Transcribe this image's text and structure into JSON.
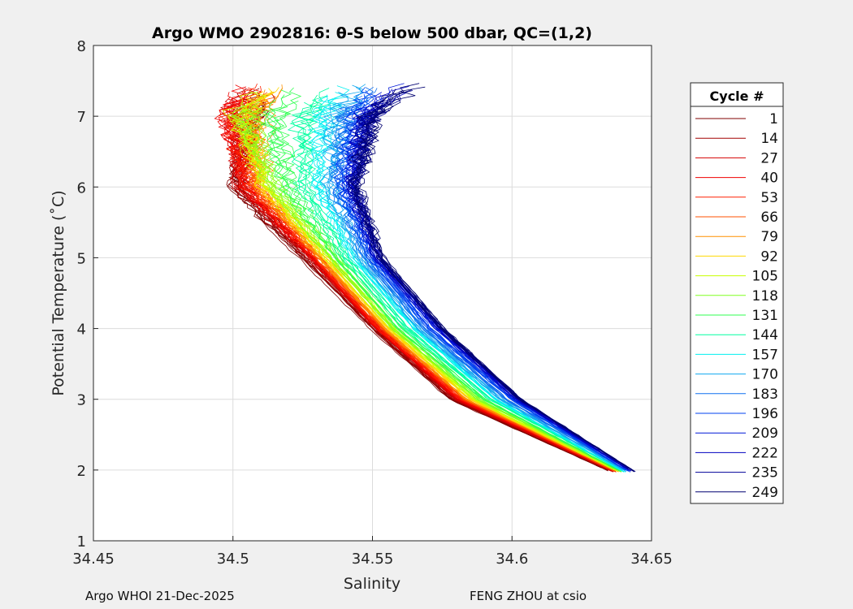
{
  "chart_data": {
    "type": "line",
    "title": "Argo WMO 2902816: θ-S below 500 dbar,  QC=(1,2)",
    "xlabel": "Salinity",
    "ylabel": "Potential Temperature (˚C)",
    "xlim": [
      34.45,
      34.65
    ],
    "ylim": [
      1,
      8
    ],
    "xticks": [
      "34.45",
      "34.5",
      "34.55",
      "34.6",
      "34.65"
    ],
    "xtick_values": [
      34.45,
      34.5,
      34.55,
      34.6,
      34.65
    ],
    "yticks": [
      "1",
      "2",
      "3",
      "4",
      "5",
      "6",
      "7",
      "8"
    ],
    "ytick_values": [
      1,
      2,
      3,
      4,
      5,
      6,
      7,
      8
    ],
    "grid": true,
    "legend_title": "Cycle #",
    "legend_position": "outside-right",
    "temperature_levels": [
      2,
      3,
      4,
      5,
      6,
      7,
      7.5
    ],
    "series": [
      {
        "name": "1",
        "color": "#800000",
        "salinity": [
          34.634,
          34.578,
          34.55,
          34.525,
          34.5,
          34.508,
          34.51
        ]
      },
      {
        "name": "14",
        "color": "#a30000",
        "salinity": [
          34.635,
          34.579,
          34.551,
          34.527,
          34.502,
          34.505,
          34.508
        ]
      },
      {
        "name": "27",
        "color": "#d40000",
        "salinity": [
          34.635,
          34.58,
          34.552,
          34.528,
          34.503,
          34.5,
          34.505
        ]
      },
      {
        "name": "40",
        "color": "#f00000",
        "salinity": [
          34.636,
          34.581,
          34.552,
          34.529,
          34.505,
          34.498,
          34.505
        ]
      },
      {
        "name": "53",
        "color": "#ff2000",
        "salinity": [
          34.636,
          34.582,
          34.553,
          34.53,
          34.506,
          34.5,
          34.51
        ]
      },
      {
        "name": "66",
        "color": "#ff5000",
        "salinity": [
          34.636,
          34.583,
          34.554,
          34.531,
          34.508,
          34.505,
          34.515
        ]
      },
      {
        "name": "79",
        "color": "#ff9000",
        "salinity": [
          34.637,
          34.584,
          34.555,
          34.532,
          34.51,
          34.51,
          34.52
        ]
      },
      {
        "name": "92",
        "color": "#ffd800",
        "salinity": [
          34.637,
          34.585,
          34.556,
          34.533,
          34.511,
          34.505,
          34.515
        ]
      },
      {
        "name": "105",
        "color": "#c8ff00",
        "salinity": [
          34.637,
          34.586,
          34.557,
          34.534,
          34.512,
          34.5,
          34.51
        ]
      },
      {
        "name": "118",
        "color": "#80ff20",
        "salinity": [
          34.638,
          34.588,
          34.558,
          34.536,
          34.515,
          34.505,
          34.515
        ]
      },
      {
        "name": "131",
        "color": "#30ff50",
        "salinity": [
          34.638,
          34.59,
          34.56,
          34.538,
          34.52,
          34.515,
          34.525
        ]
      },
      {
        "name": "144",
        "color": "#00ffa0",
        "salinity": [
          34.639,
          34.592,
          34.562,
          34.54,
          34.525,
          34.525,
          34.535
        ]
      },
      {
        "name": "157",
        "color": "#00f0f0",
        "salinity": [
          34.639,
          34.594,
          34.565,
          34.543,
          34.53,
          34.532,
          34.54
        ]
      },
      {
        "name": "170",
        "color": "#10a8f0",
        "salinity": [
          34.64,
          34.596,
          34.567,
          34.546,
          34.535,
          34.538,
          34.545
        ]
      },
      {
        "name": "183",
        "color": "#1070f0",
        "salinity": [
          34.641,
          34.598,
          34.569,
          34.548,
          34.538,
          34.542,
          34.552
        ]
      },
      {
        "name": "196",
        "color": "#0040f0",
        "salinity": [
          34.641,
          34.6,
          34.571,
          34.55,
          34.54,
          34.545,
          34.556
        ]
      },
      {
        "name": "209",
        "color": "#0018d8",
        "salinity": [
          34.642,
          34.601,
          34.573,
          34.551,
          34.542,
          34.547,
          34.56
        ]
      },
      {
        "name": "222",
        "color": "#0000c0",
        "salinity": [
          34.642,
          34.602,
          34.574,
          34.552,
          34.543,
          34.548,
          34.562
        ]
      },
      {
        "name": "235",
        "color": "#000098",
        "salinity": [
          34.643,
          34.603,
          34.575,
          34.553,
          34.544,
          34.55,
          34.565
        ]
      },
      {
        "name": "249",
        "color": "#000070",
        "salinity": [
          34.643,
          34.603,
          34.575,
          34.553,
          34.544,
          34.55,
          34.566
        ]
      }
    ]
  },
  "footer": {
    "left": "Argo WHOI 21-Dec-2025",
    "right": "FENG ZHOU at csio"
  }
}
